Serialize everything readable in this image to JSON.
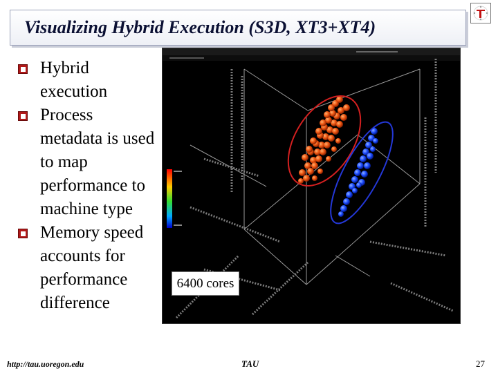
{
  "slide": {
    "title": "Visualizing Hybrid Execution (S3D, XT3+XT4)",
    "bullets": [
      "Hybrid execution",
      "Process metadata is used to map performance to machine type",
      "Memory speed accounts for performance difference"
    ],
    "callout": "6400 cores"
  },
  "visualization": {
    "background": "#000000",
    "cluster_colors": {
      "xt3": "#e8460c",
      "xt4": "#1a4cff"
    },
    "ellipse_colors": {
      "xt3": "#d42020",
      "xt4": "#2438d8"
    }
  },
  "footer": {
    "url": "http://tau.uoregon.edu",
    "center": "TAU",
    "page": "27"
  }
}
